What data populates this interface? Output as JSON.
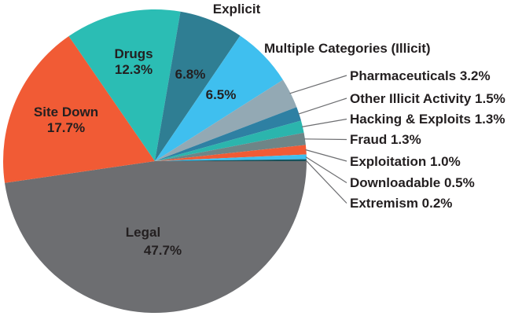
{
  "chart_data": {
    "type": "pie",
    "title": "",
    "background": "#FFFFFF",
    "text_color": "#231F20",
    "leader_line_color": "#6D6E71",
    "direction": "clockwise",
    "start_angle_deg": 0,
    "slices": [
      {
        "name": "Legal",
        "value": 47.7,
        "display": "47.7%",
        "color": "#6D6E71",
        "label_style": "inside"
      },
      {
        "name": "Site Down",
        "value": 17.7,
        "display": "17.7%",
        "color": "#F15B35",
        "label_style": "inside"
      },
      {
        "name": "Drugs",
        "value": 12.3,
        "display": "12.3%",
        "color": "#2BBDB4",
        "label_style": "inside"
      },
      {
        "name": "Explicit",
        "value": 6.8,
        "display": "6.8%",
        "color": "#2F7E93",
        "label_style": "outside-name-inside-pct"
      },
      {
        "name": "Multiple Categories (Illicit)",
        "value": 6.5,
        "display": "6.5%",
        "color": "#3FBFEF",
        "label_style": "outside-name-inside-pct"
      },
      {
        "name": "Pharmaceuticals",
        "value": 3.2,
        "display": "3.2%",
        "color": "#93A9B4",
        "label_style": "callout",
        "callout": "Pharmaceuticals 3.2%"
      },
      {
        "name": "Other Illicit Activity",
        "value": 1.5,
        "display": "1.5%",
        "color": "#2E80A3",
        "label_style": "callout",
        "callout": "Other Illicit Activity 1.5%"
      },
      {
        "name": "Hacking & Exploits",
        "value": 1.3,
        "display": "1.3%",
        "color": "#2BB5AD",
        "label_style": "callout",
        "callout": "Hacking & Exploits 1.3%"
      },
      {
        "name": "Fraud",
        "value": 1.3,
        "display": "1.3%",
        "color": "#6E8587",
        "label_style": "callout",
        "callout": "Fraud 1.3%"
      },
      {
        "name": "Exploitation",
        "value": 1.0,
        "display": "1.0%",
        "color": "#F15B35",
        "label_style": "callout",
        "callout": "Exploitation 1.0%"
      },
      {
        "name": "Downloadable",
        "value": 0.5,
        "display": "0.5%",
        "color": "#3FBFEF",
        "label_style": "callout",
        "callout": "Downloadable 0.5%"
      },
      {
        "name": "Extremism",
        "value": 0.2,
        "display": "0.2%",
        "color": "#16525C",
        "label_style": "callout",
        "callout": "Extremism 0.2%"
      }
    ]
  }
}
